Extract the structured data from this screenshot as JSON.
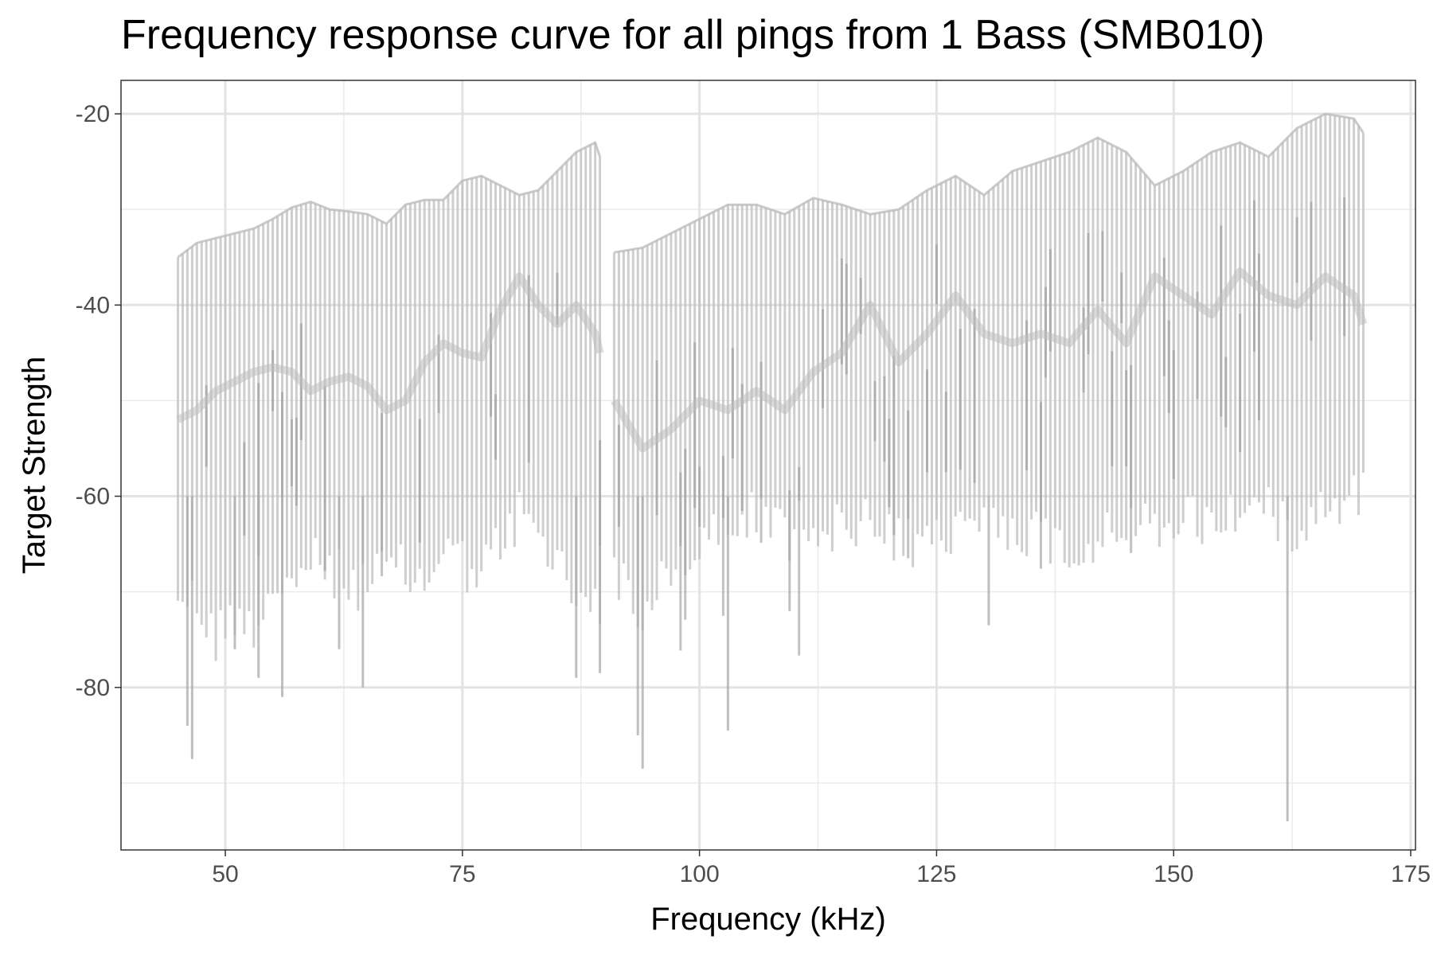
{
  "chart_data": {
    "type": "line",
    "title": "Frequency response curve for all pings from 1 Bass (SMB010)",
    "xlabel": "Frequency (kHz)",
    "ylabel": "Target Strength",
    "xlim": [
      39,
      175.5
    ],
    "ylim": [
      -97,
      -16.5
    ],
    "x_ticks": [
      50,
      75,
      100,
      125,
      150,
      175
    ],
    "x_tick_labels": [
      "50",
      "75",
      "100",
      "125",
      "150",
      "175"
    ],
    "y_ticks": [
      -20,
      -40,
      -60,
      -80
    ],
    "y_tick_labels": [
      "-20",
      "-40",
      "-60",
      "-80"
    ],
    "grid": true,
    "line_color": "#bdbdbd",
    "x_step": 0.5,
    "bands": [
      {
        "x_range": [
          45,
          89.5
        ],
        "series": [
          {
            "name": "upper_envelope",
            "x": [
              45,
              47,
              49,
              51,
              53,
              55,
              57,
              59,
              61,
              63,
              65,
              67,
              69,
              71,
              73,
              75,
              77,
              79,
              81,
              83,
              85,
              87,
              89,
              89.5
            ],
            "values": [
              -35,
              -33.5,
              -33,
              -32.5,
              -32,
              -31,
              -29.8,
              -29.2,
              -30,
              -30.2,
              -30.5,
              -31.5,
              -29.5,
              -29,
              -29,
              -27,
              -26.5,
              -27.5,
              -28.5,
              -28,
              -26,
              -24,
              -23,
              -24.5
            ]
          },
          {
            "name": "mean_curve",
            "x": [
              45,
              47,
              49,
              51,
              53,
              55,
              57,
              59,
              61,
              63,
              65,
              67,
              69,
              71,
              73,
              75,
              77,
              79,
              81,
              83,
              85,
              87,
              89,
              89.5
            ],
            "values": [
              -52,
              -51,
              -49,
              -48,
              -47,
              -46.5,
              -47,
              -49,
              -48,
              -47.5,
              -48.5,
              -51,
              -50,
              -46,
              -44,
              -45,
              -45.5,
              -40.5,
              -37,
              -40,
              -42,
              -40,
              -43,
              -45
            ]
          },
          {
            "name": "lower_envelope",
            "x": [
              45,
              47,
              49,
              51,
              53,
              55,
              57,
              59,
              61,
              63,
              65,
              67,
              69,
              71,
              73,
              75,
              77,
              79,
              81,
              83,
              85,
              87,
              89,
              89.5
            ],
            "values": [
              -69,
              -70,
              -74,
              -71,
              -72,
              -68,
              -68,
              -66,
              -67,
              -68,
              -68,
              -67,
              -67,
              -68,
              -64,
              -66,
              -67,
              -64,
              -61,
              -64,
              -66,
              -70,
              -68,
              -70
            ]
          }
        ]
      },
      {
        "x_range": [
          91,
          170
        ],
        "series": [
          {
            "name": "upper_envelope",
            "x": [
              91,
              94,
              97,
              100,
              103,
              106,
              109,
              112,
              115,
              118,
              121,
              124,
              127,
              130,
              133,
              136,
              139,
              142,
              145,
              148,
              151,
              154,
              157,
              160,
              163,
              166,
              169,
              170
            ],
            "values": [
              -34.5,
              -34,
              -32.5,
              -31,
              -29.5,
              -29.5,
              -30.5,
              -28.8,
              -29.5,
              -30.5,
              -30,
              -28,
              -26.5,
              -28.5,
              -26,
              -25,
              -24,
              -22.5,
              -24,
              -27.5,
              -26,
              -24,
              -23,
              -24.5,
              -21.5,
              -20,
              -20.5,
              -22
            ]
          },
          {
            "name": "mean_curve",
            "x": [
              91,
              94,
              97,
              100,
              103,
              106,
              109,
              112,
              115,
              118,
              121,
              124,
              127,
              130,
              133,
              136,
              139,
              142,
              145,
              148,
              151,
              154,
              157,
              160,
              163,
              166,
              169,
              170
            ],
            "values": [
              -50,
              -55,
              -53,
              -50,
              -51,
              -49,
              -51,
              -47,
              -45,
              -40,
              -46,
              -43,
              -39,
              -43,
              -44,
              -43,
              -44,
              -40.5,
              -44,
              -37,
              -39,
              -41,
              -36.5,
              -39,
              -40,
              -37,
              -39,
              -42
            ]
          },
          {
            "name": "lower_envelope",
            "x": [
              91,
              94,
              97,
              100,
              103,
              106,
              109,
              112,
              115,
              118,
              121,
              124,
              127,
              130,
              133,
              136,
              139,
              142,
              145,
              148,
              151,
              154,
              157,
              160,
              163,
              166,
              169,
              170
            ],
            "values": [
              -66,
              -72,
              -67,
              -64,
              -63,
              -61,
              -60,
              -61,
              -63,
              -62,
              -64,
              -65,
              -62,
              -61,
              -62,
              -63,
              -65,
              -64,
              -63,
              -62,
              -61,
              -62,
              -60,
              -61,
              -62,
              -60,
              -59,
              -58
            ]
          }
        ]
      }
    ],
    "outlier_dips": [
      {
        "x": 46,
        "y": -84
      },
      {
        "x": 46.5,
        "y": -87.5
      },
      {
        "x": 51,
        "y": -76
      },
      {
        "x": 53.5,
        "y": -79
      },
      {
        "x": 56,
        "y": -81
      },
      {
        "x": 62,
        "y": -76
      },
      {
        "x": 64.5,
        "y": -80
      },
      {
        "x": 87,
        "y": -79
      },
      {
        "x": 89.5,
        "y": -78.5
      },
      {
        "x": 93.5,
        "y": -85
      },
      {
        "x": 94,
        "y": -88.5
      },
      {
        "x": 103,
        "y": -84.5
      },
      {
        "x": 109.5,
        "y": -72
      },
      {
        "x": 130.5,
        "y": -73.5
      },
      {
        "x": 162,
        "y": -94
      }
    ]
  }
}
